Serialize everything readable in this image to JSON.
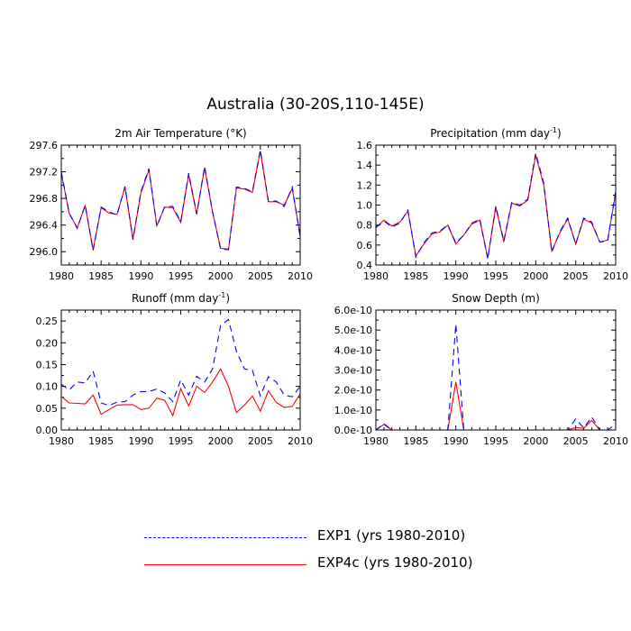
{
  "title": "Australia (30-20S,110-145E)",
  "legend": {
    "items": [
      {
        "label": "EXP1 (yrs 1980-2010)",
        "color": "#0000ff",
        "style": "dashed"
      },
      {
        "label": "EXP4c (yrs 1980-2010)",
        "color": "#ff0000",
        "style": "solid"
      }
    ]
  },
  "chart_data": [
    {
      "type": "line",
      "title": "2m Air Temperature (°K)",
      "x": [
        1980,
        1981,
        1982,
        1983,
        1984,
        1985,
        1986,
        1987,
        1988,
        1989,
        1990,
        1991,
        1992,
        1993,
        1994,
        1995,
        1996,
        1997,
        1998,
        1999,
        2000,
        2001,
        2002,
        2003,
        2004,
        2005,
        2006,
        2007,
        2008,
        2009,
        2010
      ],
      "xlim": [
        1980,
        2010
      ],
      "xticks": [
        "1980",
        "1985",
        "1990",
        "1995",
        "2000",
        "2005",
        "2010"
      ],
      "ylim": [
        295.8,
        297.6
      ],
      "yticks": [
        "296.0",
        "296.4",
        "296.8",
        "297.2",
        "297.6"
      ],
      "series": [
        {
          "name": "EXP1 (yrs 1980-2010)",
          "values": [
            297.2,
            296.58,
            296.35,
            296.7,
            296.02,
            296.67,
            296.6,
            296.55,
            296.98,
            296.18,
            296.9,
            297.25,
            296.38,
            296.68,
            296.68,
            296.45,
            297.18,
            296.56,
            297.28,
            296.6,
            296.04,
            296.03,
            296.97,
            296.95,
            296.9,
            297.53,
            296.76,
            296.76,
            296.68,
            296.97,
            296.22
          ]
        },
        {
          "name": "EXP4c (yrs 1980-2010)",
          "values": [
            297.18,
            296.57,
            296.36,
            296.69,
            296.03,
            296.66,
            296.58,
            296.56,
            296.97,
            296.19,
            296.88,
            297.23,
            296.39,
            296.67,
            296.66,
            296.44,
            297.16,
            296.57,
            297.26,
            296.59,
            296.05,
            296.04,
            296.96,
            296.94,
            296.89,
            297.51,
            296.75,
            296.75,
            296.7,
            296.95,
            296.24
          ]
        }
      ]
    },
    {
      "type": "line",
      "title": "Precipitation (mm day",
      "title_sup": "-1",
      "title_end": ")",
      "x": [
        1980,
        1981,
        1982,
        1983,
        1984,
        1985,
        1986,
        1987,
        1988,
        1989,
        1990,
        1991,
        1992,
        1993,
        1994,
        1995,
        1996,
        1997,
        1998,
        1999,
        2000,
        2001,
        2002,
        2003,
        2004,
        2005,
        2006,
        2007,
        2008,
        2009,
        2010
      ],
      "xlim": [
        1980,
        2010
      ],
      "xticks": [
        "1980",
        "1985",
        "1990",
        "1995",
        "2000",
        "2005",
        "2010"
      ],
      "ylim": [
        0.4,
        1.6
      ],
      "yticks": [
        "0.4",
        "0.6",
        "0.8",
        "1.0",
        "1.2",
        "1.4",
        "1.6"
      ],
      "series": [
        {
          "name": "EXP1 (yrs 1980-2010)",
          "values": [
            0.78,
            0.84,
            0.78,
            0.82,
            0.95,
            0.48,
            0.62,
            0.72,
            0.74,
            0.8,
            0.62,
            0.7,
            0.82,
            0.86,
            0.46,
            0.99,
            0.64,
            1.03,
            1.0,
            1.06,
            1.52,
            1.22,
            0.53,
            0.73,
            0.87,
            0.61,
            0.87,
            0.83,
            0.63,
            0.64,
            1.14
          ]
        },
        {
          "name": "EXP4c (yrs 1980-2010)",
          "values": [
            0.77,
            0.85,
            0.79,
            0.83,
            0.94,
            0.49,
            0.61,
            0.71,
            0.73,
            0.8,
            0.61,
            0.7,
            0.81,
            0.85,
            0.47,
            0.98,
            0.63,
            1.02,
            0.99,
            1.05,
            1.5,
            1.2,
            0.54,
            0.72,
            0.86,
            0.61,
            0.86,
            0.82,
            0.63,
            0.65,
            1.12
          ]
        }
      ]
    },
    {
      "type": "line",
      "title": "Runoff (mm day",
      "title_sup": "-1",
      "title_end": ")",
      "x": [
        1980,
        1981,
        1982,
        1983,
        1984,
        1985,
        1986,
        1987,
        1988,
        1989,
        1990,
        1991,
        1992,
        1993,
        1994,
        1995,
        1996,
        1997,
        1998,
        1999,
        2000,
        2001,
        2002,
        2003,
        2004,
        2005,
        2006,
        2007,
        2008,
        2009,
        2010
      ],
      "xlim": [
        1980,
        2010
      ],
      "xticks": [
        "1980",
        "1985",
        "1990",
        "1995",
        "2000",
        "2005",
        "2010"
      ],
      "ylim": [
        0,
        0.275
      ],
      "yticks": [
        "0.00",
        "0.05",
        "0.10",
        "0.15",
        "0.20",
        "0.25"
      ],
      "series": [
        {
          "name": "EXP1 (yrs 1980-2010)",
          "values": [
            0.105,
            0.092,
            0.11,
            0.108,
            0.135,
            0.062,
            0.056,
            0.064,
            0.065,
            0.08,
            0.088,
            0.088,
            0.094,
            0.085,
            0.065,
            0.115,
            0.08,
            0.123,
            0.11,
            0.14,
            0.24,
            0.253,
            0.18,
            0.14,
            0.137,
            0.078,
            0.122,
            0.11,
            0.08,
            0.076,
            0.1
          ]
        },
        {
          "name": "EXP4c (yrs 1980-2010)",
          "values": [
            0.077,
            0.062,
            0.061,
            0.06,
            0.08,
            0.036,
            0.047,
            0.057,
            0.058,
            0.058,
            0.047,
            0.05,
            0.073,
            0.068,
            0.033,
            0.095,
            0.055,
            0.1,
            0.086,
            0.11,
            0.14,
            0.1,
            0.04,
            0.057,
            0.078,
            0.043,
            0.09,
            0.063,
            0.052,
            0.054,
            0.083
          ]
        }
      ]
    },
    {
      "type": "line",
      "title": "Snow Depth (m)",
      "x": [
        1980,
        1981,
        1982,
        1983,
        1984,
        1985,
        1986,
        1987,
        1988,
        1989,
        1990,
        1991,
        1992,
        1993,
        1994,
        1995,
        1996,
        1997,
        1998,
        1999,
        2000,
        2001,
        2002,
        2003,
        2004,
        2005,
        2006,
        2007,
        2008,
        2009,
        2010
      ],
      "xlim": [
        1980,
        2010
      ],
      "xticks": [
        "1980",
        "1985",
        "1990",
        "1995",
        "2000",
        "2005",
        "2010"
      ],
      "ylim": [
        0,
        6e-10
      ],
      "yticks": [
        "0.0e-10",
        "1.0e-10",
        "2.0e-10",
        "3.0e-10",
        "4.0e-10",
        "5.0e-10",
        "6.0e-10"
      ],
      "series": [
        {
          "name": "EXP1 (yrs 1980-2010)",
          "values": [
            0,
            3.2e-11,
            0,
            0,
            0,
            0,
            0,
            0,
            0,
            0,
            5.3e-10,
            0,
            0,
            0,
            0,
            0,
            0,
            0,
            0,
            0,
            0,
            0,
            0,
            0,
            0,
            5.5e-11,
            1e-11,
            6.5e-11,
            0,
            0,
            2.8e-11
          ]
        },
        {
          "name": "EXP4c (yrs 1980-2010)",
          "values": [
            0,
            2.8e-11,
            0,
            0,
            0,
            0,
            0,
            0,
            0,
            0,
            2.4e-10,
            0,
            0,
            0,
            0,
            0,
            0,
            0,
            0,
            0,
            0,
            0,
            0,
            0,
            0,
            1.2e-11,
            8e-12,
            4.8e-11,
            0,
            0,
            0
          ]
        }
      ]
    }
  ]
}
